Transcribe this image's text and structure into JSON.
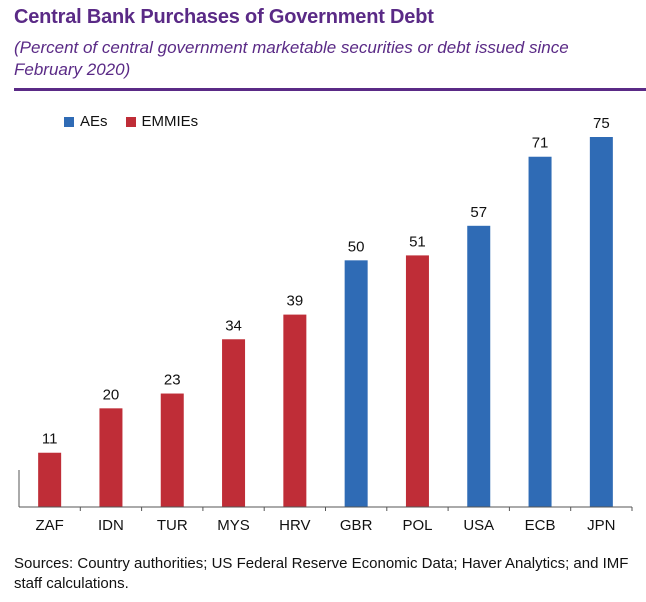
{
  "header": {
    "title": "Central Bank Purchases of Government Debt",
    "subtitle": "(Percent of central government marketable securities or debt issued since February 2020)"
  },
  "legend": {
    "items": [
      {
        "label": "AEs",
        "color": "#2f6bb5"
      },
      {
        "label": "EMMIEs",
        "color": "#bf2d37"
      }
    ]
  },
  "footer": {
    "sources": "Sources: Country authorities; US Federal Reserve Economic Data; Haver Analytics; and IMF staff calculations."
  },
  "chart_data": {
    "type": "bar",
    "title": "Central Bank Purchases of Government Debt",
    "subtitle": "(Percent of central government marketable securities or debt issued since February 2020)",
    "categories": [
      "ZAF",
      "IDN",
      "TUR",
      "MYS",
      "HRV",
      "GBR",
      "POL",
      "USA",
      "ECB",
      "JPN"
    ],
    "values": [
      11,
      20,
      23,
      34,
      39,
      50,
      51,
      57,
      71,
      75
    ],
    "groups": [
      "EMMIEs",
      "EMMIEs",
      "EMMIEs",
      "EMMIEs",
      "EMMIEs",
      "AEs",
      "EMMIEs",
      "AEs",
      "AEs",
      "AEs"
    ],
    "group_colors": {
      "AEs": "#2f6bb5",
      "EMMIEs": "#bf2d37"
    },
    "xlabel": "",
    "ylabel": "",
    "ylim": [
      0,
      75
    ],
    "grid": false,
    "legend_position": "top-left",
    "data_labels": true
  }
}
